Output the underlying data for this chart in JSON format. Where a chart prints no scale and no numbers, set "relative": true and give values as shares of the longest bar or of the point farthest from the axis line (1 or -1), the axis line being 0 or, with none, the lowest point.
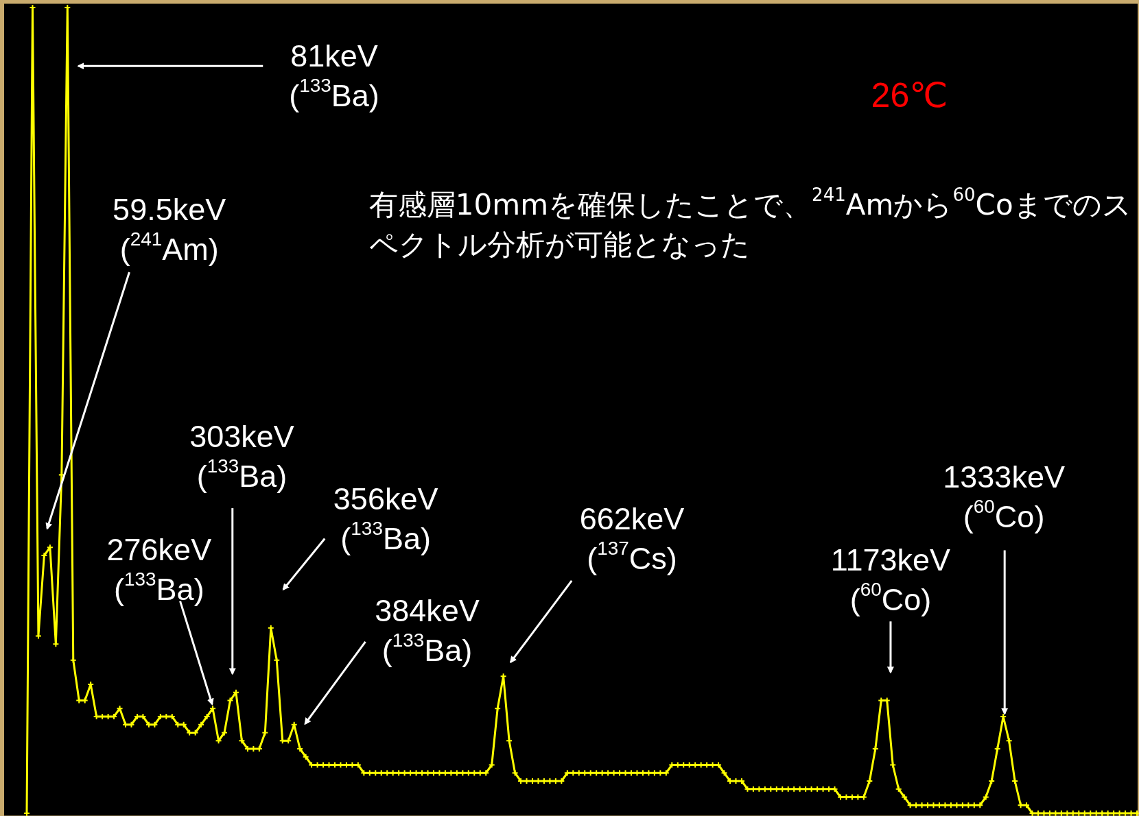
{
  "chart_data": {
    "type": "line",
    "relative": true,
    "marker": "cross",
    "categories": [
      null,
      null,
      null,
      null,
      null,
      null,
      null,
      null,
      null,
      null,
      null,
      null,
      null,
      null,
      null,
      null,
      null,
      null,
      null,
      null,
      null,
      null,
      null,
      null,
      null,
      null,
      null,
      null,
      null,
      null,
      null,
      null,
      null,
      null,
      null,
      null,
      null,
      null,
      null,
      null,
      null,
      null,
      null,
      null,
      null,
      null,
      null,
      null,
      null,
      null,
      null,
      null,
      null,
      null,
      null,
      null,
      null,
      null,
      null,
      null,
      null,
      null,
      null,
      null,
      null,
      null,
      null,
      null,
      null,
      null,
      null,
      null,
      null,
      null,
      null,
      null,
      null,
      null,
      null,
      null,
      null,
      null,
      null,
      null,
      null,
      null,
      null,
      null,
      null,
      null,
      null,
      null,
      null,
      null,
      null,
      null,
      null,
      null,
      null,
      null,
      null,
      null,
      null,
      null,
      null,
      null,
      null,
      null,
      null,
      null,
      null,
      null,
      null,
      null,
      null,
      null,
      null,
      null,
      null,
      null,
      null,
      null,
      null,
      null,
      null,
      null,
      null,
      null,
      null,
      null,
      null,
      null,
      null,
      null,
      null,
      null,
      null,
      null,
      null,
      null,
      null,
      null,
      null,
      null,
      null,
      null,
      null,
      null,
      null,
      null,
      null,
      null,
      null,
      null,
      null,
      null,
      null,
      null,
      null,
      null,
      null,
      null,
      null,
      null,
      null,
      null,
      null,
      null,
      null,
      null,
      null,
      null,
      null,
      null,
      null,
      null,
      null,
      null,
      null,
      null,
      null,
      null,
      null,
      null,
      null,
      null,
      null,
      null,
      null,
      null,
      null,
      null
    ],
    "series": [
      {
        "color": "#ffff00",
        "values": [
          0,
          1,
          0.22,
          0.32,
          0.33,
          0.21,
          0.42,
          1,
          0.19,
          0.14,
          0.14,
          0.16,
          0.12,
          0.12,
          0.12,
          0.12,
          0.13,
          0.11,
          0.11,
          0.12,
          0.12,
          0.11,
          0.11,
          0.12,
          0.12,
          0.12,
          0.11,
          0.11,
          0.1,
          0.1,
          0.11,
          0.12,
          0.13,
          0.09,
          0.1,
          0.14,
          0.15,
          0.09,
          0.08,
          0.08,
          0.08,
          0.1,
          0.23,
          0.19,
          0.09,
          0.09,
          0.11,
          0.08,
          0.07,
          0.06,
          0.06,
          0.06,
          0.06,
          0.06,
          0.06,
          0.06,
          0.06,
          0.06,
          0.05,
          0.05,
          0.05,
          0.05,
          0.05,
          0.05,
          0.05,
          0.05,
          0.05,
          0.05,
          0.05,
          0.05,
          0.05,
          0.05,
          0.05,
          0.05,
          0.05,
          0.05,
          0.05,
          0.05,
          0.05,
          0.05,
          0.06,
          0.13,
          0.17,
          0.09,
          0.05,
          0.04,
          0.04,
          0.04,
          0.04,
          0.04,
          0.04,
          0.04,
          0.04,
          0.05,
          0.05,
          0.05,
          0.05,
          0.05,
          0.05,
          0.05,
          0.05,
          0.05,
          0.05,
          0.05,
          0.05,
          0.05,
          0.05,
          0.05,
          0.05,
          0.05,
          0.05,
          0.06,
          0.06,
          0.06,
          0.06,
          0.06,
          0.06,
          0.06,
          0.06,
          0.06,
          0.05,
          0.04,
          0.04,
          0.04,
          0.03,
          0.03,
          0.03,
          0.03,
          0.03,
          0.03,
          0.03,
          0.03,
          0.03,
          0.03,
          0.03,
          0.03,
          0.03,
          0.03,
          0.03,
          0.03,
          0.02,
          0.02,
          0.02,
          0.02,
          0.02,
          0.04,
          0.08,
          0.14,
          0.14,
          0.06,
          0.03,
          0.02,
          0.01,
          0.01,
          0.01,
          0.01,
          0.01,
          0.01,
          0.01,
          0.01,
          0.01,
          0.01,
          0.01,
          0.01,
          0.01,
          0.02,
          0.04,
          0.08,
          0.12,
          0.09,
          0.04,
          0.01,
          0.01,
          0,
          0,
          0,
          0,
          0,
          0,
          0,
          0,
          0,
          0,
          0,
          0,
          0,
          0,
          0,
          0,
          0,
          0,
          0
        ]
      }
    ],
    "annotations": [
      "81keV ($^{133}$Ba)",
      "59.5keV ($^{241}$Am)",
      "303keV ($^{133}$Ba)",
      "276keV ($^{133}$Ba)",
      "356keV ($^{133}$Ba)",
      "384keV ($^{133}$Ba)",
      "662keV ($^{137}$Cs)",
      "1173keV ($^{60}$Co)",
      "1333keV ($^{60}$Co)",
      "26℃",
      "有感層10mmを確保したことで、$^{241}$Amから$^{60}$Coまでのスペクトル分析が可能となった"
    ]
  }
}
